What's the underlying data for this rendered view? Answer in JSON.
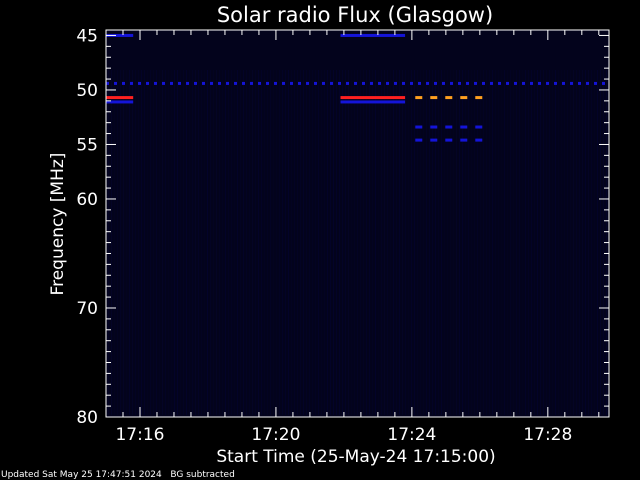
{
  "chart_data": {
    "type": "heatmap",
    "title": "Solar radio Flux (Glasgow)",
    "xlabel": "Start Time (25-May-24 17:15:00)",
    "ylabel": "Frequency [MHz]",
    "x_unit": "minutes after 17:15:00",
    "xlim": [
      0,
      14.8
    ],
    "ylim": [
      80,
      44.5
    ],
    "x_ticks": [
      {
        "value": 1,
        "label": "17:16"
      },
      {
        "value": 5,
        "label": "17:20"
      },
      {
        "value": 9,
        "label": "17:24"
      },
      {
        "value": 13,
        "label": "17:28"
      }
    ],
    "y_ticks": [
      {
        "value": 45,
        "label": "45"
      },
      {
        "value": 50,
        "label": "50"
      },
      {
        "value": 55,
        "label": "55"
      },
      {
        "value": 60,
        "label": "60"
      },
      {
        "value": 70,
        "label": "70"
      },
      {
        "value": 80,
        "label": "80"
      }
    ],
    "colors": {
      "background": "#000000",
      "frame": "#ffffff",
      "low": "#05053a",
      "mid": "#1414d8",
      "high": "#ff2020",
      "orange": "#ffa020"
    },
    "features": [
      {
        "freq": 49.4,
        "x_start": 0.0,
        "x_end": 14.8,
        "color": "mid",
        "style": "dashed-fine"
      },
      {
        "freq": 50.7,
        "x_start": 0.0,
        "x_end": 0.8,
        "color": "high",
        "style": "solid"
      },
      {
        "freq": 50.7,
        "x_start": 6.9,
        "x_end": 8.8,
        "color": "high",
        "style": "solid"
      },
      {
        "freq": 51.1,
        "x_start": 0.0,
        "x_end": 0.8,
        "color": "mid",
        "style": "solid"
      },
      {
        "freq": 51.1,
        "x_start": 6.9,
        "x_end": 8.8,
        "color": "mid",
        "style": "solid"
      },
      {
        "freq": 45.0,
        "x_start": 0.0,
        "x_end": 0.8,
        "color": "mid",
        "style": "solid"
      },
      {
        "freq": 45.0,
        "x_start": 6.9,
        "x_end": 8.8,
        "color": "mid",
        "style": "solid"
      },
      {
        "freq": 50.7,
        "x_start": 9.1,
        "x_end": 11.3,
        "color": "orange",
        "style": "dashed"
      },
      {
        "freq": 53.4,
        "x_start": 9.1,
        "x_end": 11.3,
        "color": "mid",
        "style": "dashed"
      },
      {
        "freq": 54.6,
        "x_start": 9.1,
        "x_end": 11.3,
        "color": "mid",
        "style": "dashed"
      }
    ]
  },
  "footer": {
    "updated": "Updated Sat May 25 17:47:51 2024",
    "mode": "BG subtracted"
  }
}
